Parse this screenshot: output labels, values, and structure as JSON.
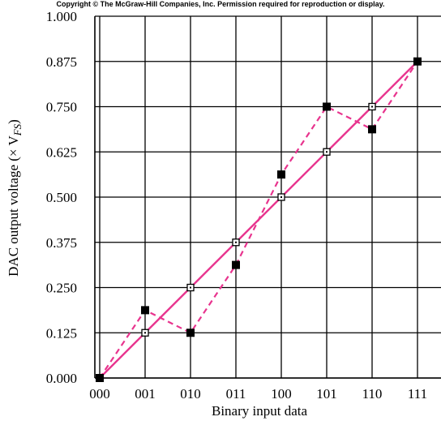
{
  "copyright": "Copyright © The McGraw-Hill Companies, Inc. Permission required for reproduction or display.",
  "chart_data": {
    "type": "line",
    "xlabel": "Binary input data",
    "ylabel_main": "DAC output voltage (× V",
    "ylabel_sub": "FS",
    "ylabel_close": ")",
    "categories": [
      "000",
      "001",
      "010",
      "011",
      "100",
      "101",
      "110",
      "111"
    ],
    "ylim": [
      0,
      1
    ],
    "yticks": [
      "0.000",
      "0.125",
      "0.250",
      "0.375",
      "0.500",
      "0.625",
      "0.750",
      "0.875",
      "1.000"
    ],
    "grid": true,
    "series": [
      {
        "style": "ideal-solid-open-markers",
        "values": [
          0,
          0.125,
          0.25,
          0.375,
          0.5,
          0.625,
          0.75,
          0.875
        ]
      },
      {
        "style": "actual-dashed-filled-markers",
        "values": [
          0,
          0.1875,
          0.125,
          0.3125,
          0.5625,
          0.75,
          0.6875,
          0.875
        ]
      }
    ],
    "line_color": "#e8348e",
    "marker_color": "#000000"
  }
}
